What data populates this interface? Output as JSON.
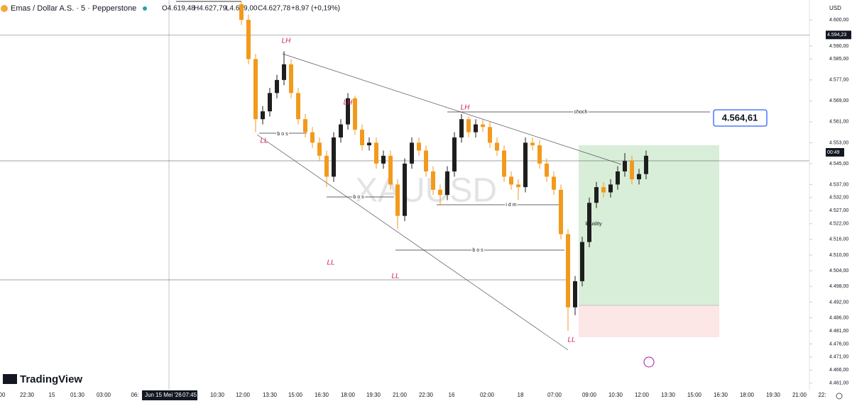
{
  "header": {
    "symbol": "Emas / Dollar A.S. · 5 · Pepperstone",
    "open": "O4.619,48",
    "high": "H4.627,79",
    "low": "L4.619,00",
    "close": "C4.627,78",
    "change": "+8,97 (+0,19%)"
  },
  "chart_data": {
    "type": "candlestick",
    "watermark": "XAUUSD",
    "axis_label": "USD",
    "brand": "TradingView",
    "up_color": "#1e1e1e",
    "down_color": "#f29a1c",
    "open": [
      4606,
      4600,
      4585,
      4562,
      4565,
      4572,
      4577,
      4583,
      4572,
      4562,
      4557,
      4553,
      4548,
      4540,
      4555,
      4560,
      4570,
      4558,
      4552,
      4553,
      4545,
      4548,
      4537,
      4525,
      4545,
      4553,
      4550,
      4542,
      4535,
      4533,
      4542,
      4555,
      4562,
      4557,
      4560,
      4559,
      4553,
      4550,
      4540,
      4537,
      4536,
      4553,
      4552,
      4545,
      4540,
      4535,
      4518,
      4490,
      4500,
      4515,
      4530,
      4536,
      4534,
      4537,
      4542,
      4546,
      4539,
      4541
    ],
    "high": [
      4607,
      4602,
      4587,
      4567,
      4574,
      4579,
      4588,
      4585,
      4574,
      4564,
      4559,
      4555,
      4550,
      4557,
      4562,
      4572,
      4571,
      4560,
      4555,
      4555,
      4550,
      4550,
      4539,
      4547,
      4555,
      4555,
      4552,
      4544,
      4537,
      4544,
      4557,
      4564,
      4563,
      4562,
      4562,
      4561,
      4555,
      4552,
      4542,
      4539,
      4555,
      4555,
      4554,
      4547,
      4542,
      4537,
      4520,
      4502,
      4517,
      4532,
      4538,
      4538,
      4539,
      4544,
      4549,
      4548,
      4543,
      4550
    ],
    "low": [
      4598,
      4583,
      4557,
      4560,
      4563,
      4570,
      4575,
      4570,
      4560,
      4555,
      4551,
      4546,
      4536,
      4538,
      4553,
      4558,
      4556,
      4550,
      4550,
      4543,
      4543,
      4535,
      4520,
      4523,
      4543,
      4548,
      4540,
      4533,
      4529,
      4531,
      4540,
      4553,
      4555,
      4555,
      4557,
      4551,
      4548,
      4538,
      4535,
      4531,
      4534,
      4550,
      4543,
      4538,
      4533,
      4516,
      4481,
      4487,
      4498,
      4513,
      4528,
      4532,
      4532,
      4535,
      4540,
      4537,
      4537,
      4539
    ],
    "close": [
      4600,
      4585,
      4562,
      4565,
      4572,
      4577,
      4583,
      4572,
      4562,
      4557,
      4553,
      4548,
      4540,
      4555,
      4560,
      4570,
      4558,
      4552,
      4553,
      4545,
      4548,
      4537,
      4525,
      4545,
      4553,
      4550,
      4542,
      4535,
      4533,
      4542,
      4555,
      4562,
      4557,
      4560,
      4559,
      4553,
      4550,
      4540,
      4537,
      4536,
      4553,
      4552,
      4545,
      4540,
      4535,
      4518,
      4490,
      4500,
      4515,
      4530,
      4536,
      4534,
      4537,
      4542,
      4546,
      4539,
      4541,
      4548
    ],
    "ylim": [
      4458.5,
      4607.6
    ],
    "yticks": [
      {
        "value": 4600,
        "label": "4.600,00"
      },
      {
        "value": 4590,
        "label": "4.590,00"
      },
      {
        "value": 4585,
        "label": "4.585,00"
      },
      {
        "value": 4577,
        "label": "4.577,00"
      },
      {
        "value": 4569,
        "label": "4.569,00"
      },
      {
        "value": 4561,
        "label": "4.561,00"
      },
      {
        "value": 4553,
        "label": "4.553,00"
      },
      {
        "value": 4545,
        "label": "4.545,00"
      },
      {
        "value": 4537,
        "label": "4.537,00"
      },
      {
        "value": 4532,
        "label": "4.532,00"
      },
      {
        "value": 4527,
        "label": "4.527,00"
      },
      {
        "value": 4522,
        "label": "4.522,00"
      },
      {
        "value": 4516,
        "label": "4.516,00"
      },
      {
        "value": 4510,
        "label": "4.510,00"
      },
      {
        "value": 4504,
        "label": "4.504,00"
      },
      {
        "value": 4498,
        "label": "4.498,00"
      },
      {
        "value": 4492,
        "label": "4.492,00"
      },
      {
        "value": 4486,
        "label": "4.486,00"
      },
      {
        "value": 4481,
        "label": "4.481,00"
      },
      {
        "value": 4476,
        "label": "4.476,00"
      },
      {
        "value": 4471,
        "label": "4.471,00"
      },
      {
        "value": 4466,
        "label": "4.466,00"
      },
      {
        "value": 4461,
        "label": "4.461,00"
      }
    ],
    "price_line": {
      "value": 4594.23,
      "label": "4.594,23"
    },
    "countdown": "00:49",
    "target_label": "4.564,61",
    "time_labels": [
      "00",
      "22:30",
      "15",
      "01:30",
      "03:00",
      "06:",
      "10:30",
      "12:00",
      "13:30",
      "15:00",
      "16:30",
      "18:00",
      "19:30",
      "21:00",
      "22:30",
      "16",
      "02:00",
      "18",
      "07:00",
      "09:00",
      "10:30",
      "12:00",
      "13:30",
      "15:00",
      "16:30",
      "18:00",
      "19:30",
      "21:00",
      "22:"
    ],
    "crosshair_date": "Jun 15 Mei '26",
    "crosshair_time": "07:45",
    "annotations": [
      "LH",
      "LH",
      "LH",
      "LL",
      "LL",
      "LL",
      "LL",
      "b o s",
      "b o s",
      "b o s",
      "i d m",
      "choch",
      "liquidity"
    ]
  }
}
